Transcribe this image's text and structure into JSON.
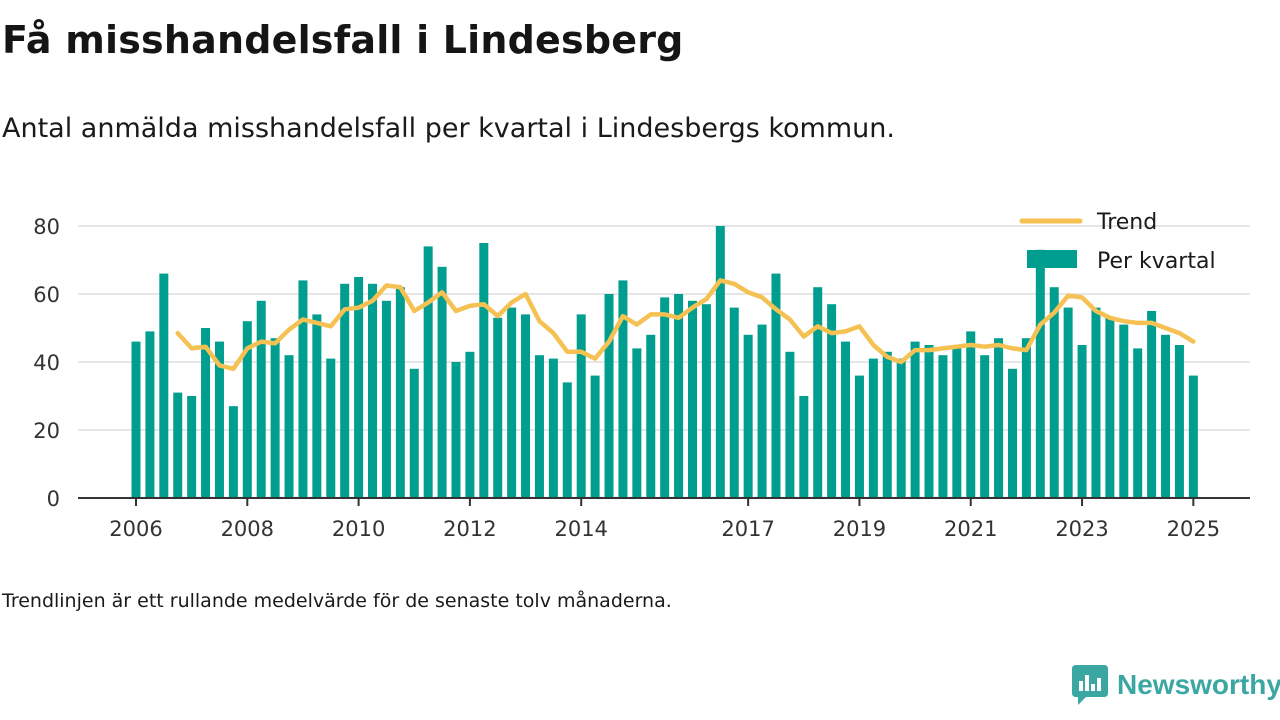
{
  "title": "Få misshandelsfall i Lindesberg",
  "subtitle": "Antal anmälda misshandelsfall per kvartal i Lindesbergs kommun.",
  "footnote": "Trendlinjen är ett rullande medelvärde för de senaste tolv månaderna.",
  "brand": {
    "name": "Newsworthy",
    "icon": "newsworthy-logo-icon"
  },
  "colors": {
    "bars": "#009e8f",
    "trend": "#f5c152",
    "grid": "#dddddd",
    "axis": "#333333"
  },
  "chart_data": {
    "type": "bar",
    "legend_position": "top-right",
    "grid": true,
    "ylim": [
      0,
      80
    ],
    "yticks": [
      0,
      20,
      40,
      60,
      80
    ],
    "xlim": [
      2005.75,
      2025.35
    ],
    "xticks": [
      2006,
      2008,
      2010,
      2012,
      2014,
      2017,
      2019,
      2021,
      2023,
      2025
    ],
    "x_start": 2006.0,
    "x_step": 0.25,
    "series": [
      {
        "name": "Per kvartal",
        "kind": "bar",
        "values": [
          46,
          49,
          66,
          31,
          30,
          50,
          46,
          27,
          52,
          58,
          47,
          42,
          64,
          54,
          41,
          63,
          65,
          63,
          58,
          62,
          38,
          74,
          68,
          40,
          43,
          75,
          53,
          56,
          54,
          42,
          41,
          34,
          54,
          36,
          60,
          64,
          44,
          48,
          59,
          60,
          58,
          57,
          80,
          56,
          48,
          51,
          66,
          43,
          30,
          62,
          57,
          46,
          36,
          41,
          43,
          41,
          46,
          45,
          42,
          44,
          49,
          42,
          47,
          38,
          47,
          73,
          62,
          56,
          45,
          56,
          53,
          51,
          44,
          55,
          48,
          45,
          36
        ]
      },
      {
        "name": "Trend",
        "kind": "line",
        "values": [
          null,
          null,
          null,
          48.5,
          44,
          44.5,
          39,
          38,
          44,
          46,
          45.5,
          49.5,
          52.5,
          51.5,
          50.5,
          55.5,
          56,
          58,
          62.5,
          62,
          55,
          57.5,
          60.5,
          55,
          56.5,
          57,
          53.5,
          57.5,
          60,
          52,
          48.5,
          43,
          43,
          41,
          46,
          53.5,
          51,
          54,
          54,
          53,
          56,
          58.5,
          64,
          63,
          60.5,
          59,
          55.5,
          52.5,
          47.5,
          50.5,
          48.5,
          49,
          50.5,
          45,
          41.5,
          40,
          43.5,
          43.5,
          44,
          44.5,
          45,
          44.5,
          45,
          44,
          43.5,
          51,
          54.5,
          59.5,
          59,
          55,
          53,
          52,
          51.5,
          51.5,
          50,
          48.5,
          46
        ]
      }
    ]
  }
}
